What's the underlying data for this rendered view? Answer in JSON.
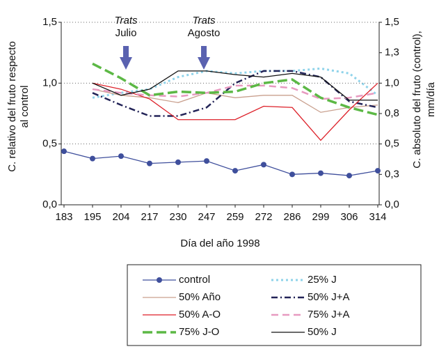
{
  "chart_data": {
    "type": "line",
    "x_label": "Día del año 1998",
    "y_label": [
      "C. relativo  del fruto respecto",
      "al control"
    ],
    "y2_label": [
      "C. absoluto del fruto  (control),",
      "mm/día"
    ],
    "annotations": [
      [
        "Trats",
        "Julio"
      ],
      [
        "Trats",
        "Agosto"
      ]
    ],
    "categories": [
      "183",
      "195",
      "204",
      "217",
      "230",
      "247",
      "259",
      "272",
      "286",
      "299",
      "306",
      "314"
    ],
    "ylim": [
      0,
      1.5
    ],
    "yticks": [
      {
        "value": 0,
        "label": "0,0"
      },
      {
        "value": 0.5,
        "label": "0,5"
      },
      {
        "value": 1,
        "label": "1,0"
      },
      {
        "value": 1.5,
        "label": "1,5"
      }
    ],
    "y2lim": [
      0,
      1.5
    ],
    "y2ticks": [
      {
        "value": 0,
        "label": "0,0"
      },
      {
        "value": 0.25,
        "label": "0,3"
      },
      {
        "value": 0.5,
        "label": "0,5"
      },
      {
        "value": 0.75,
        "label": "0,8"
      },
      {
        "value": 1,
        "label": "1,0"
      },
      {
        "value": 1.25,
        "label": "1,3"
      },
      {
        "value": 1.5,
        "label": "1,5"
      }
    ],
    "grid": true,
    "series": [
      {
        "name": "control",
        "color": "#3f4f9c",
        "dash": "solid",
        "marker": true,
        "axis": "y2",
        "values": [
          0.44,
          0.38,
          0.4,
          0.34,
          0.35,
          0.36,
          0.28,
          0.33,
          0.25,
          0.26,
          0.24,
          0.28
        ]
      },
      {
        "name": "25% J",
        "color": "#8fd3ea",
        "dash": "dot",
        "values": [
          null,
          0.88,
          0.92,
          0.95,
          1.05,
          1.1,
          1.08,
          1.1,
          1.1,
          1.12,
          1.08,
          0.9
        ]
      },
      {
        "name": "50% Año",
        "color": "#c9a08e",
        "dash": "solid",
        "values": [
          null,
          0.95,
          0.9,
          0.88,
          0.84,
          0.92,
          0.88,
          0.9,
          0.9,
          0.76,
          0.8,
          0.82
        ]
      },
      {
        "name": "50% J+A",
        "color": "#232458",
        "dash": "dashdot",
        "values": [
          null,
          0.92,
          0.82,
          0.73,
          0.73,
          0.8,
          1.0,
          1.1,
          1.1,
          1.05,
          0.85,
          0.8
        ]
      },
      {
        "name": "50% A-O",
        "color": "#dd1f28",
        "dash": "solid",
        "values": [
          null,
          1.0,
          0.95,
          0.87,
          0.7,
          0.7,
          0.7,
          0.81,
          0.8,
          0.53,
          0.78,
          1.0
        ]
      },
      {
        "name": "75% J+A",
        "color": "#e79ac0",
        "dash": "dash",
        "values": [
          null,
          0.95,
          0.92,
          0.9,
          0.89,
          0.92,
          0.98,
          0.98,
          0.96,
          0.87,
          0.88,
          0.92
        ]
      },
      {
        "name": "75% J-O",
        "color": "#5cb845",
        "dash": "longdash",
        "values": [
          null,
          1.16,
          1.04,
          0.9,
          0.93,
          0.92,
          0.93,
          1.0,
          1.03,
          0.88,
          0.8,
          0.74
        ]
      },
      {
        "name": "50% J",
        "color": "#111111",
        "dash": "solid",
        "values": [
          null,
          1.0,
          0.9,
          0.95,
          1.1,
          1.1,
          1.07,
          1.05,
          1.08,
          1.05,
          0.86,
          0.86
        ]
      }
    ]
  }
}
